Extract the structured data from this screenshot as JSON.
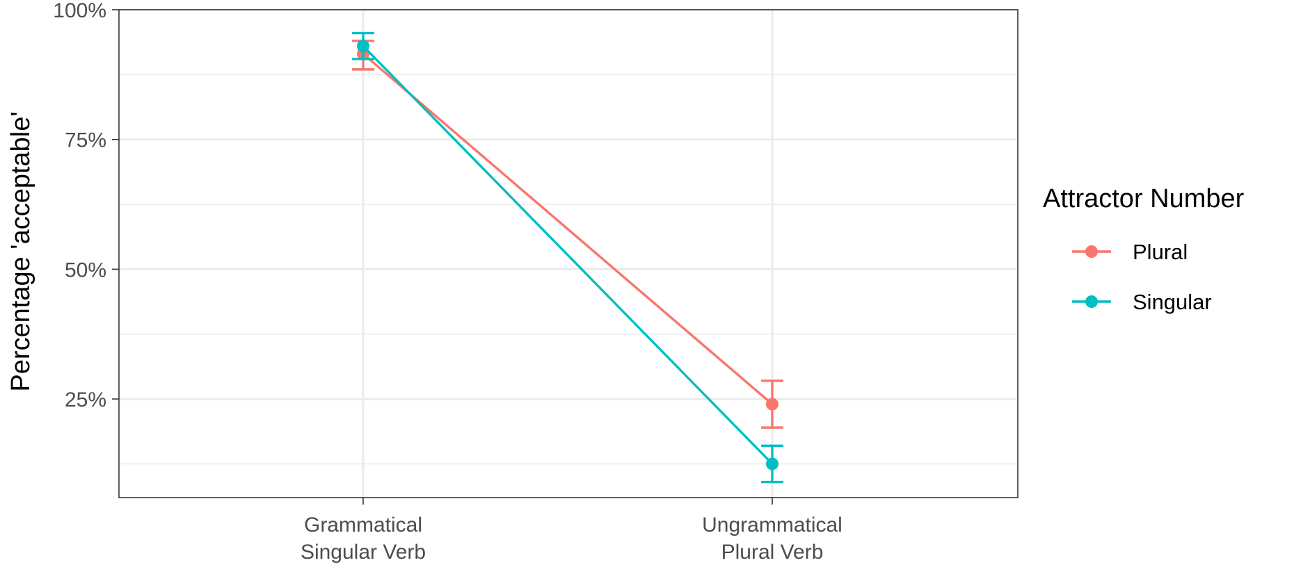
{
  "chart_data": {
    "type": "line",
    "title": "",
    "xlabel": "",
    "ylabel": "Percentage 'acceptable'",
    "categories": [
      {
        "line1": "Grammatical",
        "line2": "Singular Verb"
      },
      {
        "line1": "Ungrammatical",
        "line2": "Plural Verb"
      }
    ],
    "ylim": [
      0.06,
      1.0
    ],
    "yticks": [
      {
        "value": 0.25,
        "label": "25%"
      },
      {
        "value": 0.5,
        "label": "50%"
      },
      {
        "value": 0.75,
        "label": "75%"
      },
      {
        "value": 1.0,
        "label": "100%"
      }
    ],
    "yminor": [
      0.125,
      0.375,
      0.625,
      0.875
    ],
    "grid": true,
    "legend": {
      "title": "Attractor Number",
      "position": "right"
    },
    "series": [
      {
        "name": "Plural",
        "color": "#F8766D",
        "values": [
          0.915,
          0.24
        ],
        "lower": [
          0.885,
          0.195
        ],
        "upper": [
          0.94,
          0.285
        ]
      },
      {
        "name": "Singular",
        "color": "#00BFC4",
        "values": [
          0.93,
          0.125
        ],
        "lower": [
          0.905,
          0.09
        ],
        "upper": [
          0.955,
          0.16
        ]
      }
    ]
  }
}
